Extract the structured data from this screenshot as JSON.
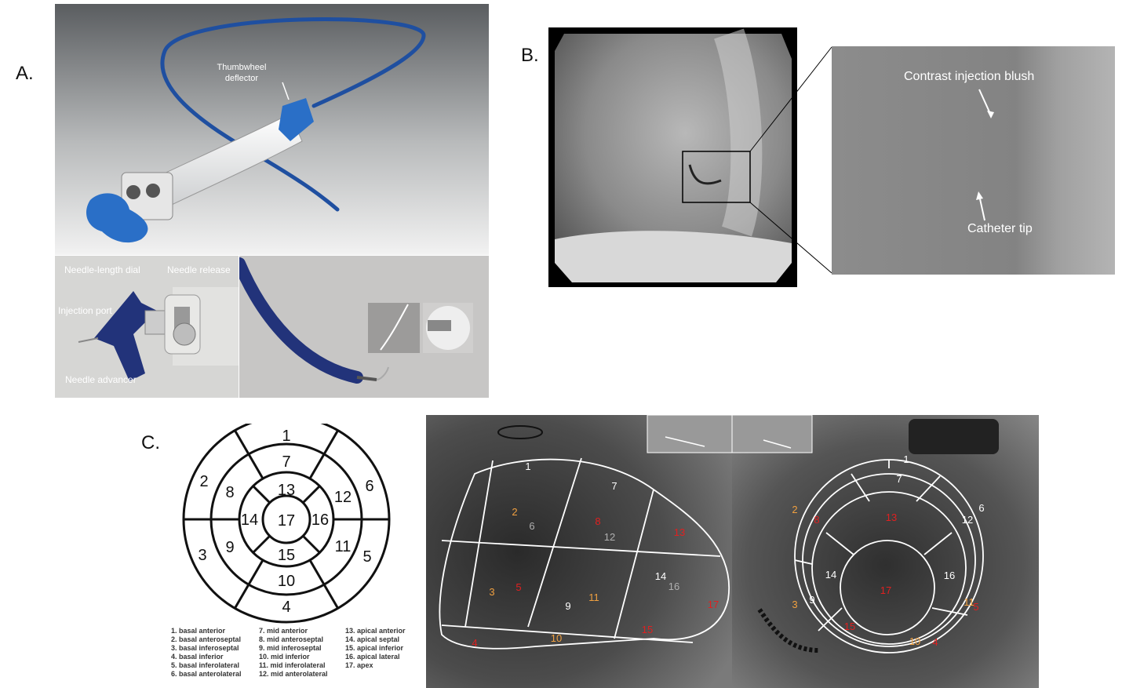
{
  "panels": {
    "A": {
      "letter": "A.",
      "labels": {
        "thumbwheel": "Thumbwheel\ndeflector",
        "needle_length_dial": "Needle-length dial",
        "needle_release": "Needle release",
        "injection_port": "Injection port",
        "needle_advancer": "Needle advancer"
      }
    },
    "B": {
      "letter": "B.",
      "labels": {
        "contrast": "Contrast injection blush",
        "catheter_tip": "Catheter tip"
      }
    },
    "C": {
      "letter": "C.",
      "bullseye_segments": [
        "1",
        "2",
        "3",
        "4",
        "5",
        "6",
        "7",
        "8",
        "9",
        "10",
        "11",
        "12",
        "13",
        "14",
        "15",
        "16",
        "17"
      ],
      "legend_col1": [
        "1. basal anterior",
        "2. basal anteroseptal",
        "3. basal inferoseptal",
        "4. basal inferior",
        "5. basal inferolateral",
        "6. basal anterolateral"
      ],
      "legend_col2": [
        "7. mid anterior",
        "8. mid anteroseptal",
        "9. mid inferoseptal",
        "10. mid inferior",
        "11. mid inferolateral",
        "12. mid anterolateral"
      ],
      "legend_col3": [
        "13. apical anterior",
        "14. apical septal",
        "15. apical inferior",
        "16. apical lateral",
        "17. apex"
      ],
      "colors": {
        "white": "#ffffff",
        "orange": "#f0a040",
        "red": "#e02020",
        "grey": "#b0b0b0"
      }
    }
  }
}
